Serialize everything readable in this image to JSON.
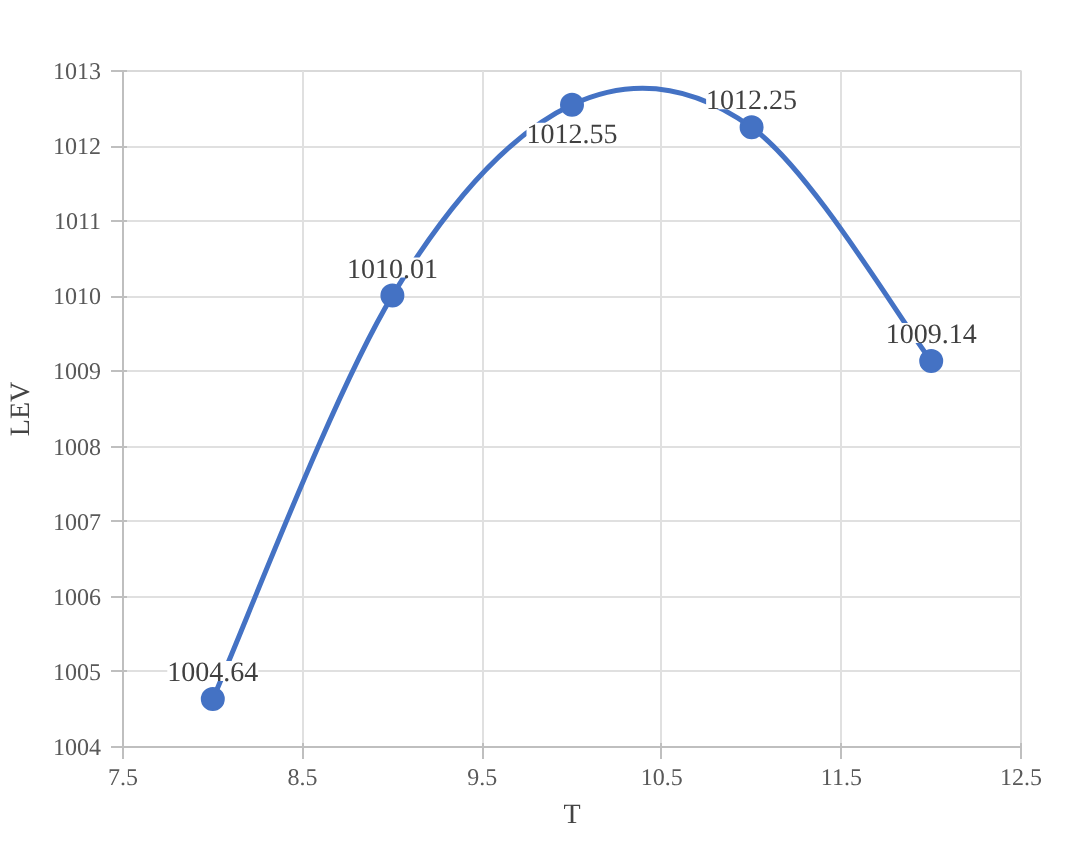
{
  "chart_data": {
    "type": "line",
    "xlabel": "T",
    "ylabel": "LEV",
    "x": [
      8,
      9,
      10,
      11,
      12
    ],
    "series": [
      {
        "color": "#4472c4",
        "values": [
          1004.64,
          1010.01,
          1012.55,
          1012.25,
          1009.14
        ]
      }
    ],
    "xlim": [
      7.5,
      12.5
    ],
    "xticks": [
      7.5,
      8.5,
      9.5,
      10.5,
      11.5,
      12.5
    ],
    "ylim": [
      1004,
      1013
    ],
    "yticks": [
      1004,
      1005,
      1006,
      1007,
      1008,
      1009,
      1010,
      1011,
      1012,
      1013
    ],
    "grid": true,
    "marker": "circle",
    "data_labels": true,
    "line_style": "solid"
  }
}
